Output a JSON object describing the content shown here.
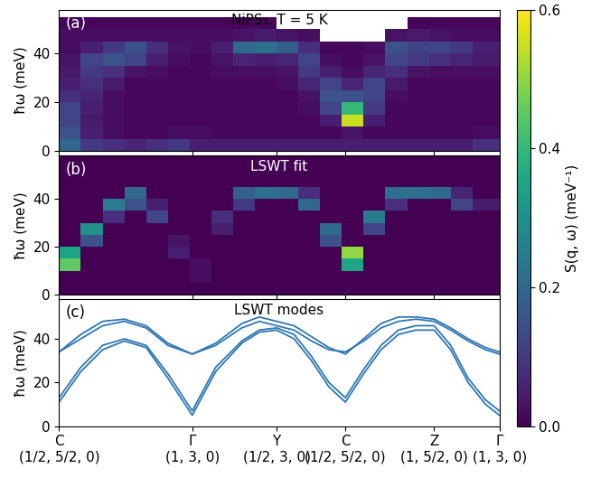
{
  "chart_data": [
    {
      "type": "heatmap",
      "title": "NiPS₃, T = 5 K",
      "annotations": [
        "(a)"
      ],
      "y_label": "ħω (meV)",
      "tick_labels": "y",
      "xlim": [
        0,
        5.06
      ],
      "xticks": [
        0,
        1.53,
        2.5,
        3.29,
        4.31,
        5.06
      ],
      "ylim": [
        0,
        58
      ],
      "yticks": [
        0,
        20,
        40
      ],
      "x_edges": [
        0,
        0.25,
        0.5,
        0.75,
        1.0,
        1.25,
        1.5,
        1.75,
        2.0,
        2.25,
        2.5,
        2.75,
        3.0,
        3.25,
        3.5,
        3.75,
        4.0,
        4.25,
        4.5,
        4.75,
        5.06
      ],
      "y_edges": [
        0,
        5,
        10,
        15,
        20,
        25,
        30,
        35,
        40,
        45,
        50,
        55
      ],
      "cells": [
        [
          0.2,
          0.1,
          0.08,
          0.06,
          0.08,
          0.1,
          0.05,
          0.05,
          0.05,
          0.05,
          0.05,
          0.05,
          0.05,
          0.05,
          0.05,
          0.05,
          0.05,
          0.05,
          0.05,
          0.08
        ],
        [
          0.15,
          0.05,
          0.02,
          0.01,
          0.01,
          0.02,
          0.02,
          0.01,
          0.01,
          0.01,
          0.01,
          0.01,
          0.01,
          0.03,
          0.01,
          0.01,
          0.01,
          0.01,
          0.01,
          0.02
        ],
        [
          0.12,
          0.04,
          0.02,
          0.01,
          0.01,
          0.01,
          0.01,
          0.01,
          0.01,
          0.01,
          0.01,
          0.01,
          0.05,
          0.55,
          0.05,
          0.01,
          0.01,
          0.01,
          0.01,
          0.01
        ],
        [
          0.12,
          0.05,
          0.02,
          0.01,
          0.01,
          0.01,
          0.01,
          0.01,
          0.01,
          0.01,
          0.01,
          0.02,
          0.12,
          0.4,
          0.1,
          0.01,
          0.01,
          0.01,
          0.01,
          0.01
        ],
        [
          0.08,
          0.06,
          0.02,
          0.01,
          0.01,
          0.01,
          0.01,
          0.01,
          0.01,
          0.01,
          0.01,
          0.03,
          0.15,
          0.15,
          0.12,
          0.02,
          0.01,
          0.01,
          0.01,
          0.01
        ],
        [
          0.05,
          0.08,
          0.04,
          0.01,
          0.01,
          0.01,
          0.01,
          0.01,
          0.01,
          0.01,
          0.02,
          0.06,
          0.12,
          0.06,
          0.12,
          0.04,
          0.01,
          0.01,
          0.01,
          0.01
        ],
        [
          0.04,
          0.1,
          0.08,
          0.03,
          0.02,
          0.01,
          0.01,
          0.02,
          0.02,
          0.02,
          0.03,
          0.1,
          0.05,
          0.02,
          0.06,
          0.08,
          0.03,
          0.02,
          0.02,
          0.02
        ],
        [
          0.03,
          0.12,
          0.15,
          0.12,
          0.05,
          0.02,
          0.01,
          0.03,
          0.06,
          0.05,
          0.06,
          0.12,
          0.02,
          0.01,
          0.03,
          0.12,
          0.1,
          0.08,
          0.06,
          0.04
        ],
        [
          0.02,
          0.05,
          0.1,
          0.15,
          0.08,
          0.03,
          0.02,
          0.05,
          0.2,
          0.22,
          0.18,
          0.08,
          0.01,
          0.01,
          0.02,
          0.15,
          0.12,
          0.12,
          0.1,
          0.05
        ],
        [
          0.02,
          0.02,
          0.02,
          0.02,
          0.02,
          0.02,
          0.02,
          0.02,
          0.03,
          0.04,
          0.03,
          0.02,
          null,
          null,
          null,
          0.03,
          0.04,
          0.03,
          0.02,
          0.02
        ],
        [
          0.01,
          0.01,
          0.01,
          0.01,
          0.01,
          0.01,
          0.01,
          0.01,
          0.01,
          0.01,
          null,
          null,
          null,
          null,
          null,
          null,
          0.01,
          0.01,
          0.01,
          0.01
        ]
      ],
      "colorbar_label": "S(q, ω) (meV⁻¹)",
      "colorbar_range": [
        0,
        0.6
      ],
      "colorbar_ticks": [
        {
          "value": 0,
          "label": "0.0"
        },
        {
          "value": 0.2,
          "label": "0.2"
        },
        {
          "value": 0.4,
          "label": "0.4"
        },
        {
          "value": 0.6,
          "label": "0.6"
        }
      ]
    },
    {
      "type": "heatmap",
      "title": "LSWT fit",
      "annotations": [
        "(b)"
      ],
      "y_label": "ħω (meV)",
      "tick_labels": "y",
      "xlim": [
        0,
        5.06
      ],
      "xticks": [
        0,
        1.53,
        2.5,
        3.29,
        4.31,
        5.06
      ],
      "ylim": [
        0,
        58
      ],
      "yticks": [
        0,
        20,
        40
      ],
      "x_edges": [
        0,
        0.25,
        0.5,
        0.75,
        1.0,
        1.25,
        1.5,
        1.75,
        2.0,
        2.25,
        2.5,
        2.75,
        3.0,
        3.25,
        3.5,
        3.75,
        4.0,
        4.25,
        4.5,
        4.75,
        5.06
      ],
      "y_edges": [
        0,
        5,
        10,
        15,
        20,
        25,
        30,
        35,
        40,
        45,
        50,
        55
      ],
      "cells": [
        [
          0,
          0,
          0,
          0,
          0,
          0,
          0,
          0,
          0,
          0,
          0,
          0,
          0,
          0,
          0,
          0,
          0,
          0,
          0,
          0
        ],
        [
          0,
          0,
          0,
          0,
          0,
          0,
          0.02,
          0,
          0,
          0,
          0,
          0,
          0,
          0,
          0,
          0,
          0,
          0,
          0,
          0
        ],
        [
          0.45,
          0,
          0,
          0,
          0,
          0,
          0.02,
          0,
          0,
          0,
          0,
          0,
          0,
          0.35,
          0,
          0,
          0,
          0,
          0,
          0
        ],
        [
          0.35,
          0,
          0,
          0,
          0,
          0.05,
          0,
          0,
          0,
          0,
          0,
          0,
          0,
          0.5,
          0,
          0,
          0,
          0,
          0,
          0
        ],
        [
          0,
          0.15,
          0,
          0,
          0,
          0.03,
          0,
          0,
          0,
          0,
          0,
          0,
          0.15,
          0,
          0,
          0,
          0,
          0,
          0,
          0
        ],
        [
          0,
          0.3,
          0,
          0,
          0,
          0,
          0,
          0.05,
          0,
          0,
          0,
          0,
          0.2,
          0,
          0.12,
          0,
          0,
          0,
          0,
          0
        ],
        [
          0,
          0,
          0.08,
          0,
          0.12,
          0,
          0,
          0.08,
          0,
          0,
          0,
          0,
          0,
          0,
          0.25,
          0,
          0,
          0,
          0,
          0
        ],
        [
          0,
          0,
          0.25,
          0.15,
          0.05,
          0,
          0,
          0,
          0.1,
          0,
          0,
          0.2,
          0,
          0,
          0,
          0.08,
          0,
          0,
          0.12,
          0.04
        ],
        [
          0,
          0,
          0,
          0.2,
          0,
          0,
          0,
          0,
          0.18,
          0.22,
          0.2,
          0.08,
          0,
          0,
          0,
          0.22,
          0.22,
          0.2,
          0.06,
          0
        ],
        [
          0,
          0,
          0,
          0,
          0,
          0,
          0,
          0,
          0,
          0,
          0,
          0,
          0,
          0,
          0,
          0,
          0,
          0,
          0,
          0
        ],
        [
          0,
          0,
          0,
          0,
          0,
          0,
          0,
          0,
          0,
          0,
          0,
          0,
          0,
          0,
          0,
          0,
          0,
          0,
          0,
          0
        ]
      ]
    },
    {
      "type": "line",
      "title": "LSWT modes",
      "annotations": [
        "(c)"
      ],
      "y_label": "ħω (meV)",
      "xlim": [
        0,
        5.06
      ],
      "xticks": [
        {
          "value": 0,
          "label": "C\n(1/2, 5/2, 0)"
        },
        {
          "value": 1.53,
          "label": "Γ\n(1, 3, 0)"
        },
        {
          "value": 2.5,
          "label": "Y\n(1/2, 3, 0)"
        },
        {
          "value": 3.29,
          "label": "C\n(1/2, 5/2, 0)"
        },
        {
          "value": 4.31,
          "label": "Z\n(1, 5/2, 0)"
        },
        {
          "value": 5.06,
          "label": "Γ\n(1, 3, 0)"
        }
      ],
      "ylim": [
        0,
        58
      ],
      "yticks": [
        0,
        20,
        40
      ],
      "x": [
        0,
        0.25,
        0.5,
        0.75,
        1.0,
        1.25,
        1.53,
        1.8,
        2.1,
        2.3,
        2.5,
        2.7,
        2.9,
        3.1,
        3.29,
        3.5,
        3.7,
        3.9,
        4.1,
        4.31,
        4.5,
        4.7,
        4.9,
        5.06
      ],
      "series": [
        {
          "color": "#2f77b4",
          "values": [
            11,
            25,
            35,
            39,
            36,
            22,
            5,
            25,
            38,
            43,
            44,
            40,
            30,
            18,
            11,
            24,
            35,
            42,
            44,
            44,
            35,
            20,
            10,
            5
          ]
        },
        {
          "color": "#2f77b4",
          "values": [
            13,
            27,
            37,
            40,
            37,
            24,
            7,
            27,
            39,
            44,
            45,
            42,
            32,
            20,
            13,
            26,
            37,
            44,
            46,
            46,
            37,
            22,
            12,
            7
          ]
        },
        {
          "color": "#2f77b4",
          "values": [
            34,
            42,
            48,
            49,
            46,
            38,
            33,
            38,
            47,
            50,
            48,
            46,
            41,
            36,
            33,
            40,
            47,
            50,
            50,
            49,
            45,
            40,
            36,
            34
          ]
        },
        {
          "color": "#2f77b4",
          "values": [
            34,
            40,
            46,
            48,
            45,
            37,
            33,
            37,
            45,
            48,
            46,
            44,
            39,
            35,
            34,
            39,
            45,
            48,
            49,
            48,
            44,
            39,
            35,
            33
          ]
        }
      ]
    }
  ]
}
